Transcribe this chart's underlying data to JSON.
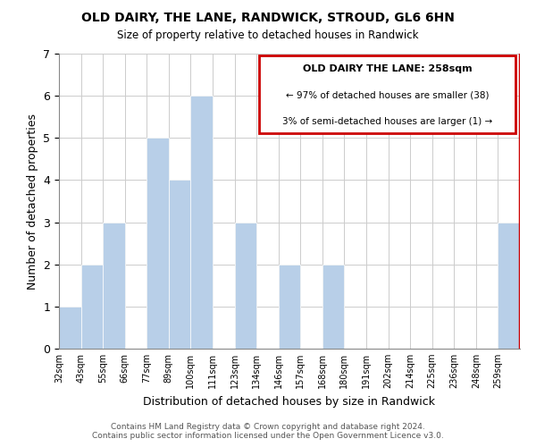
{
  "title": "OLD DAIRY, THE LANE, RANDWICK, STROUD, GL6 6HN",
  "subtitle": "Size of property relative to detached houses in Randwick",
  "xlabel": "Distribution of detached houses by size in Randwick",
  "ylabel": "Number of detached properties",
  "bar_labels": [
    "32sqm",
    "43sqm",
    "55sqm",
    "66sqm",
    "77sqm",
    "89sqm",
    "100sqm",
    "111sqm",
    "123sqm",
    "134sqm",
    "146sqm",
    "157sqm",
    "168sqm",
    "180sqm",
    "191sqm",
    "202sqm",
    "214sqm",
    "225sqm",
    "236sqm",
    "248sqm",
    "259sqm"
  ],
  "bar_values": [
    1,
    2,
    3,
    0,
    5,
    4,
    6,
    0,
    3,
    0,
    2,
    0,
    2,
    0,
    0,
    0,
    0,
    0,
    0,
    0,
    3
  ],
  "bar_color": "#b8cfe8",
  "annotation_box_color": "#cc0000",
  "annotation_title": "OLD DAIRY THE LANE: 258sqm",
  "annotation_line1": "← 97% of detached houses are smaller (38)",
  "annotation_line2": "3% of semi-detached houses are larger (1) →",
  "ylim": [
    0,
    7
  ],
  "yticks": [
    0,
    1,
    2,
    3,
    4,
    5,
    6,
    7
  ],
  "footer_line1": "Contains HM Land Registry data © Crown copyright and database right 2024.",
  "footer_line2": "Contains public sector information licensed under the Open Government Licence v3.0.",
  "background_color": "#ffffff",
  "grid_color": "#cccccc"
}
